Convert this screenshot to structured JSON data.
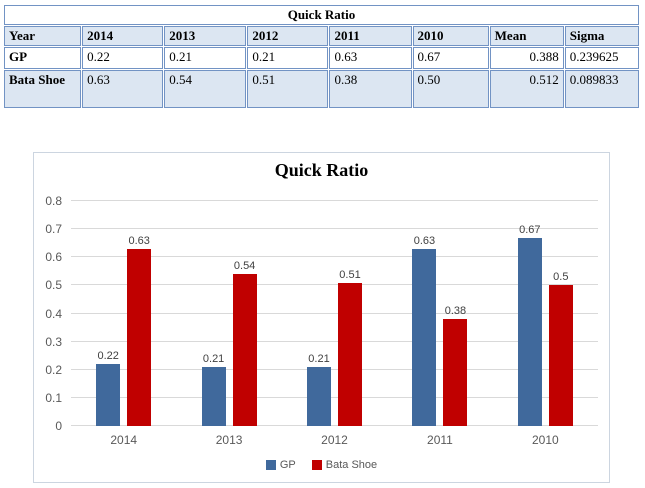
{
  "table": {
    "title": "Quick Ratio",
    "header": [
      "Year",
      "2014",
      "2013",
      "2012",
      "2011",
      "2010",
      "Mean",
      "Sigma"
    ],
    "rows": [
      {
        "label": "GP",
        "values": [
          "0.22",
          "0.21",
          "0.21",
          "0.63",
          "0.67"
        ],
        "mean": "0.388",
        "sigma": "0.239625"
      },
      {
        "label": "Bata Shoe",
        "values": [
          "0.63",
          "0.54",
          "0.51",
          "0.38",
          "0.50"
        ],
        "mean": "0.512",
        "sigma": "0.089833"
      }
    ],
    "colors": {
      "header_fill": "#dce6f2",
      "alt_row_fill": "#dce6f2",
      "border": "#7293c4"
    }
  },
  "chart_data": {
    "type": "bar",
    "title": "Quick Ratio",
    "categories": [
      "2014",
      "2013",
      "2012",
      "2011",
      "2010"
    ],
    "series": [
      {
        "name": "GP",
        "color": "#40699C",
        "values": [
          0.22,
          0.21,
          0.21,
          0.63,
          0.67
        ],
        "labels": [
          "0.22",
          "0.21",
          "0.21",
          "0.63",
          "0.67"
        ]
      },
      {
        "name": "Bata Shoe",
        "color": "#C00000",
        "values": [
          0.63,
          0.54,
          0.51,
          0.38,
          0.5
        ],
        "labels": [
          "0.63",
          "0.54",
          "0.51",
          "0.38",
          "0.5"
        ]
      }
    ],
    "xlabel": "",
    "ylabel": "",
    "ylim": [
      0,
      0.8
    ],
    "yticks": [
      0,
      0.1,
      0.2,
      0.3,
      0.4,
      0.5,
      0.6,
      0.7,
      0.8
    ],
    "ytick_labels": [
      "0",
      "0.1",
      "0.2",
      "0.3",
      "0.4",
      "0.5",
      "0.6",
      "0.7",
      "0.8"
    ],
    "grid": "horizontal",
    "legend_position": "bottom",
    "colors": {
      "gridline": "#d9d9d9",
      "axis_text": "#595959",
      "label_text": "#3f3f3f",
      "frame": "#ccd5e0"
    }
  }
}
